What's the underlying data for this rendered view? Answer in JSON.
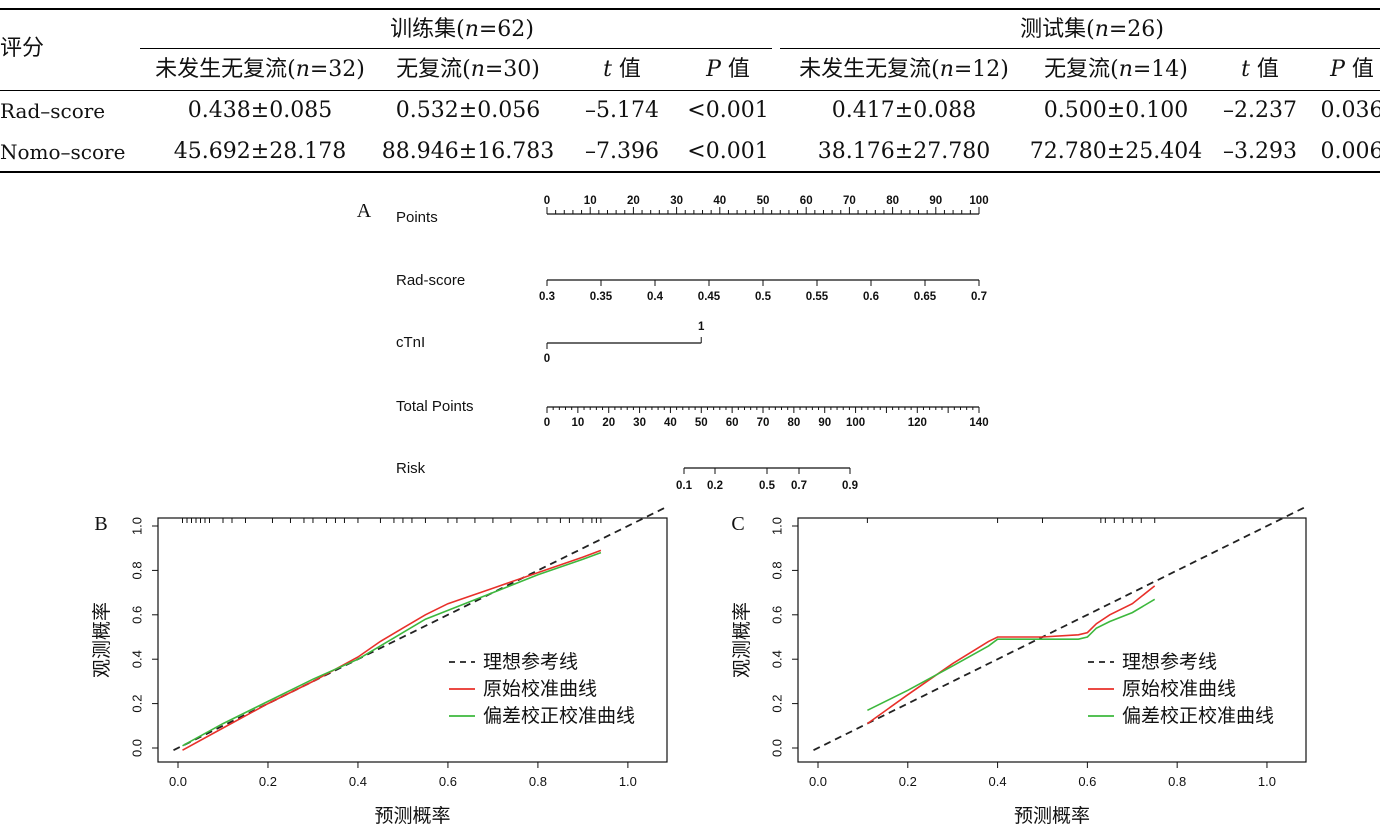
{
  "table": {
    "row_header": "评分",
    "groups": [
      {
        "label": "训练集",
        "n_label": "n",
        "n_value": "=62"
      },
      {
        "label": "测试集",
        "n_label": "n",
        "n_value": "=26"
      }
    ],
    "subheaders": [
      {
        "pre": "未发生无复流(",
        "it": "n",
        "post": "=32)"
      },
      {
        "pre": "无复流(",
        "it": "n",
        "post": "=30)"
      },
      {
        "pre": "",
        "it": "t",
        "post": " 值"
      },
      {
        "pre": "",
        "it": "P",
        "post": " 值"
      },
      {
        "pre": "未发生无复流(",
        "it": "n",
        "post": "=12)"
      },
      {
        "pre": "无复流(",
        "it": "n",
        "post": "=14)"
      },
      {
        "pre": "",
        "it": "t",
        "post": " 值"
      },
      {
        "pre": "",
        "it": "P",
        "post": " 值"
      }
    ],
    "rows": [
      {
        "label": "Rad–score",
        "cells": [
          "0.438±0.085",
          "0.532±0.056",
          "–5.174",
          "<0.001",
          "0.417±0.088",
          "0.500±0.100",
          "–2.237",
          "0.036"
        ]
      },
      {
        "label": "Nomo–score",
        "cells": [
          "45.692±28.178",
          "88.946±16.783",
          "–7.396",
          "<0.001",
          "38.176±27.780",
          "72.780±25.404",
          "–3.293",
          "0.006"
        ]
      }
    ]
  },
  "nomogram": {
    "panel_label": "A",
    "scales": [
      {
        "name": "Points",
        "ticks": [
          "0",
          "10",
          "20",
          "30",
          "40",
          "50",
          "60",
          "70",
          "80",
          "90",
          "100"
        ]
      },
      {
        "name": "Rad-score",
        "ticks": [
          "0.3",
          "0.35",
          "0.4",
          "0.45",
          "0.5",
          "0.55",
          "0.6",
          "0.65",
          "0.7"
        ]
      },
      {
        "name": "cTnI",
        "ticks": [
          "0",
          "1"
        ]
      },
      {
        "name": "Total Points",
        "ticks": [
          "0",
          "10",
          "20",
          "30",
          "40",
          "50",
          "60",
          "70",
          "80",
          "90",
          "100",
          "120",
          "140"
        ]
      },
      {
        "name": "Risk",
        "ticks": [
          "0.1",
          "0.2",
          "0.5",
          "0.7",
          "0.9"
        ]
      }
    ]
  },
  "chart_data": [
    {
      "type": "line",
      "panel_label": "B",
      "xlabel": "预测概率",
      "ylabel": "观测概率",
      "xlim": [
        0,
        1.0
      ],
      "ylim": [
        0,
        1.0
      ],
      "xticks": [
        "0.0",
        "0.2",
        "0.4",
        "0.6",
        "0.8",
        "1.0"
      ],
      "yticks": [
        "0.0",
        "0.2",
        "0.4",
        "0.6",
        "0.8",
        "1.0"
      ],
      "legend": [
        "理想参考线",
        "原始校准曲线",
        "偏差校正校准曲线"
      ],
      "legend_position": "bottom-right",
      "colors": {
        "ideal": "#222222",
        "apparent": "#e8302a",
        "bias_corrected": "#3db83d"
      },
      "series": [
        {
          "name": "理想参考线",
          "style": "dashed",
          "x": [
            0.0,
            1.0
          ],
          "y": [
            0.0,
            1.0
          ]
        },
        {
          "name": "原始校准曲线",
          "x": [
            0.01,
            0.1,
            0.2,
            0.3,
            0.4,
            0.45,
            0.5,
            0.55,
            0.6,
            0.7,
            0.8,
            0.9,
            0.94
          ],
          "y": [
            -0.01,
            0.09,
            0.2,
            0.3,
            0.41,
            0.48,
            0.54,
            0.6,
            0.65,
            0.72,
            0.79,
            0.86,
            0.89
          ]
        },
        {
          "name": "偏差校正校准曲线",
          "x": [
            0.01,
            0.1,
            0.2,
            0.3,
            0.4,
            0.45,
            0.5,
            0.55,
            0.6,
            0.7,
            0.8,
            0.9,
            0.94
          ],
          "y": [
            0.01,
            0.11,
            0.21,
            0.31,
            0.4,
            0.46,
            0.52,
            0.58,
            0.62,
            0.7,
            0.78,
            0.85,
            0.88
          ]
        }
      ]
    },
    {
      "type": "line",
      "panel_label": "C",
      "xlabel": "预测概率",
      "ylabel": "观测概率",
      "xlim": [
        0,
        1.0
      ],
      "ylim": [
        0,
        1.0
      ],
      "xticks": [
        "0.0",
        "0.2",
        "0.4",
        "0.6",
        "0.8",
        "1.0"
      ],
      "yticks": [
        "0.0",
        "0.2",
        "0.4",
        "0.6",
        "0.8",
        "1.0"
      ],
      "legend": [
        "理想参考线",
        "原始校准曲线",
        "偏差校正校准曲线"
      ],
      "legend_position": "bottom-right",
      "colors": {
        "ideal": "#222222",
        "apparent": "#e8302a",
        "bias_corrected": "#3db83d"
      },
      "series": [
        {
          "name": "理想参考线",
          "style": "dashed",
          "x": [
            0.0,
            1.0
          ],
          "y": [
            0.0,
            1.0
          ]
        },
        {
          "name": "原始校准曲线",
          "x": [
            0.11,
            0.2,
            0.3,
            0.38,
            0.4,
            0.5,
            0.58,
            0.6,
            0.62,
            0.65,
            0.7,
            0.75
          ],
          "y": [
            0.11,
            0.24,
            0.38,
            0.48,
            0.5,
            0.5,
            0.51,
            0.52,
            0.56,
            0.6,
            0.65,
            0.73
          ]
        },
        {
          "name": "偏差校正校准曲线",
          "x": [
            0.11,
            0.2,
            0.3,
            0.38,
            0.4,
            0.5,
            0.58,
            0.6,
            0.62,
            0.65,
            0.7,
            0.75
          ],
          "y": [
            0.17,
            0.26,
            0.37,
            0.46,
            0.49,
            0.49,
            0.49,
            0.5,
            0.54,
            0.57,
            0.61,
            0.67
          ]
        }
      ]
    }
  ]
}
